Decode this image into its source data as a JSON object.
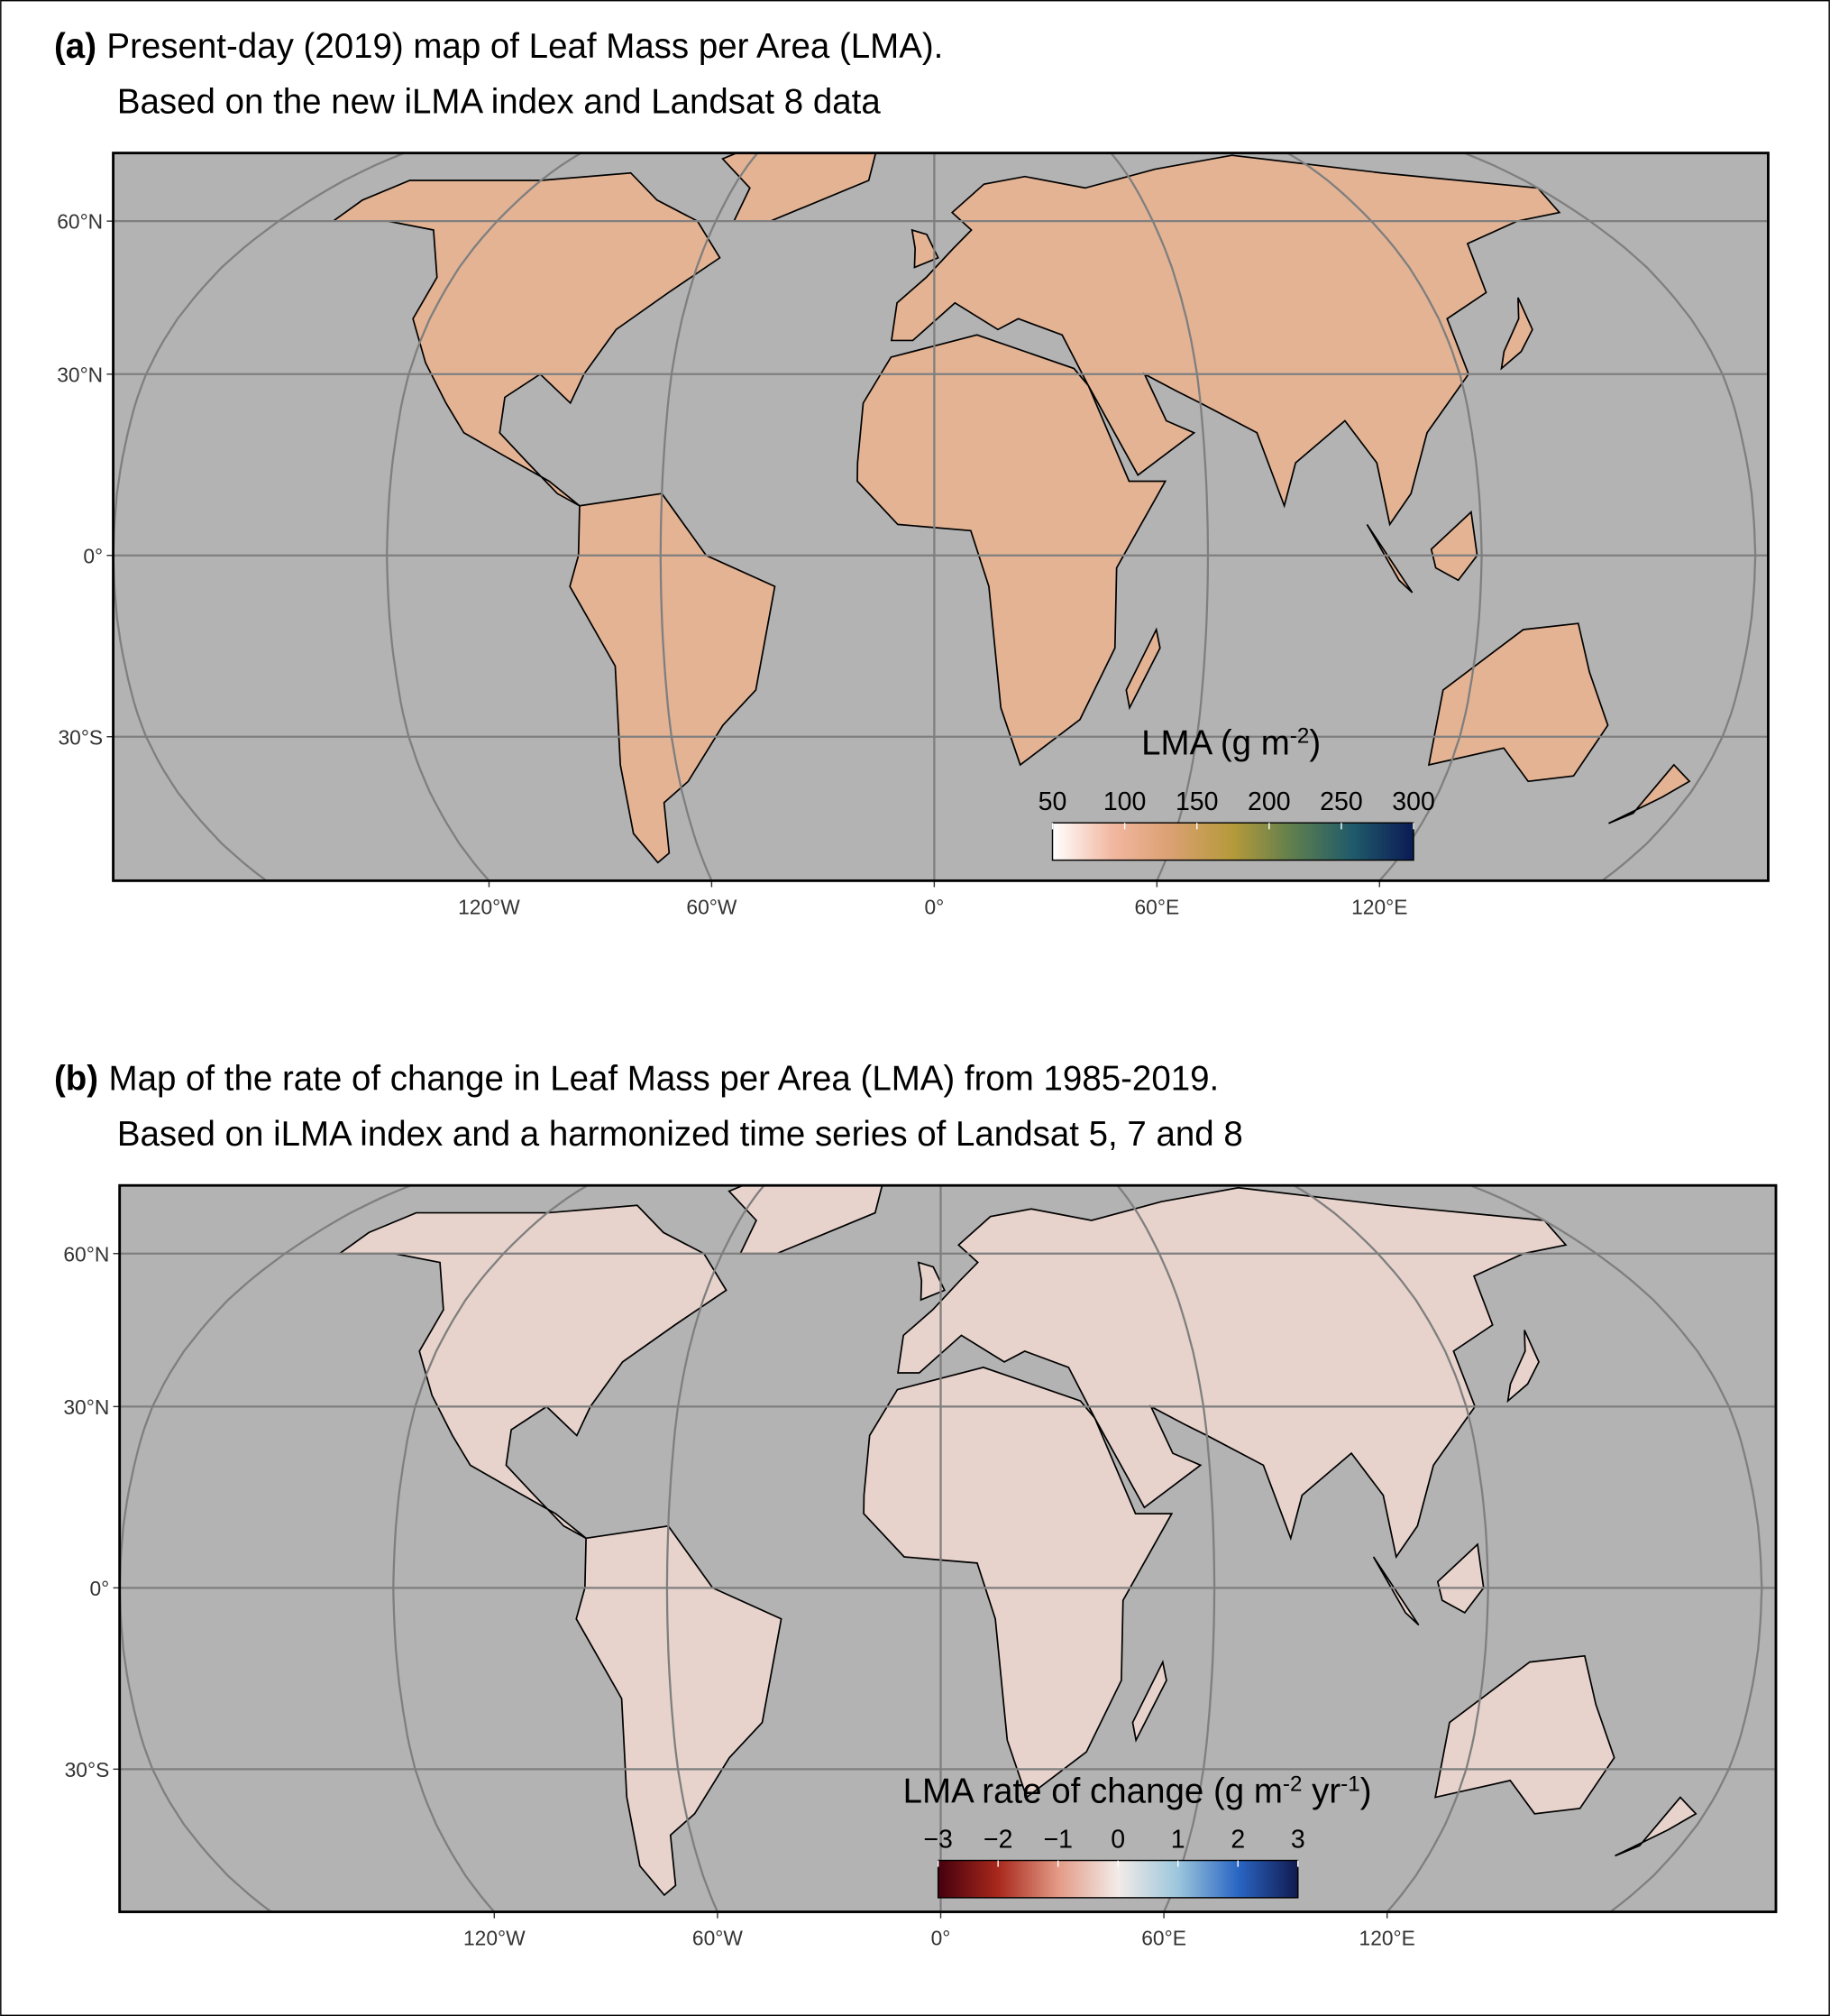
{
  "panels": [
    {
      "label": "(a)",
      "title": [
        "Present-day (2019) map of Leaf Mass per Area (LMA).",
        "Based on the new iLMA index and Landsat 8 data"
      ],
      "lat_ticks": [
        {
          "value": 60,
          "label": "60°N"
        },
        {
          "value": 30,
          "label": "30°N"
        },
        {
          "value": 0,
          "label": "0°"
        },
        {
          "value": -30,
          "label": "30°S"
        }
      ],
      "lon_ticks": [
        {
          "value": -120,
          "label": "120°W"
        },
        {
          "value": -60,
          "label": "60°W"
        },
        {
          "value": 0,
          "label": "0°"
        },
        {
          "value": 60,
          "label": "60°E"
        },
        {
          "value": 120,
          "label": "120°E"
        }
      ],
      "legend": {
        "title": [
          "LMA (g m",
          "-2",
          ")"
        ],
        "lim": [
          50,
          300
        ],
        "ticks": [
          50,
          100,
          150,
          200,
          250,
          300
        ],
        "colors": [
          "#ffffff",
          "#f2b7a0",
          "#d9a070",
          "#b59a3a",
          "#5e7e4e",
          "#1f5a6a",
          "#0b1a55"
        ]
      }
    },
    {
      "label": "(b)",
      "title": [
        "Map of the rate of change in Leaf Mass per Area (LMA) from 1985-2019.",
        "Based on iLMA index and a harmonized time series of Landsat 5, 7 and 8"
      ],
      "lat_ticks": [
        {
          "value": 60,
          "label": "60°N"
        },
        {
          "value": 30,
          "label": "30°N"
        },
        {
          "value": 0,
          "label": "0°"
        },
        {
          "value": -30,
          "label": "30°S"
        }
      ],
      "lon_ticks": [
        {
          "value": -120,
          "label": "120°W"
        },
        {
          "value": -60,
          "label": "60°W"
        },
        {
          "value": 0,
          "label": "0°"
        },
        {
          "value": 60,
          "label": "60°E"
        },
        {
          "value": 120,
          "label": "120°E"
        }
      ],
      "legend": {
        "title": [
          "LMA rate of change (g m",
          "-2",
          " yr",
          "-1",
          ")"
        ],
        "lim": [
          -3,
          3
        ],
        "ticks": [
          {
            "value": -3,
            "label": "−3"
          },
          {
            "value": -2,
            "label": "−2"
          },
          {
            "value": -1,
            "label": "−1"
          },
          0,
          1,
          2,
          3
        ],
        "colors": [
          "#45000d",
          "#a8281c",
          "#e39a86",
          "#f2ebe8",
          "#9cc6dc",
          "#2a66c4",
          "#111a4f"
        ]
      }
    }
  ]
}
